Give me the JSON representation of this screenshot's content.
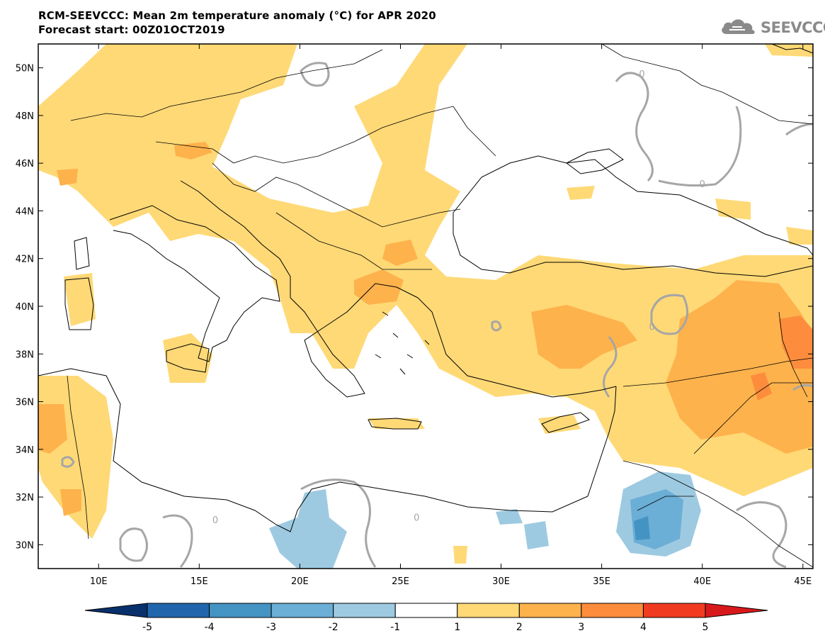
{
  "title": {
    "line1": "RCM-SEEVCCC: Mean 2m temperature anomaly (°C) for APR 2020",
    "line2": "Forecast start: 00Z01OCT2019"
  },
  "logo": {
    "text": "SEEVCCC",
    "icon": "cloud-icon"
  },
  "axes": {
    "lat_labels": [
      "50N",
      "48N",
      "46N",
      "44N",
      "42N",
      "40N",
      "38N",
      "36N",
      "34N",
      "32N",
      "30N"
    ],
    "lat_values": [
      50,
      48,
      46,
      44,
      42,
      40,
      38,
      36,
      34,
      32,
      30
    ],
    "lon_labels": [
      "10E",
      "15E",
      "20E",
      "25E",
      "30E",
      "35E",
      "40E",
      "45E"
    ],
    "lon_values": [
      10,
      15,
      20,
      25,
      30,
      35,
      40,
      45
    ],
    "lon_range": [
      7,
      45.5
    ],
    "lat_range": [
      29,
      51
    ]
  },
  "contour_labels": [
    {
      "text": "0",
      "lon": 37.0,
      "lat": 49.6
    },
    {
      "text": "0",
      "lon": 40.0,
      "lat": 45.0
    },
    {
      "text": "0",
      "lon": 37.5,
      "lat": 39.0
    },
    {
      "text": "0",
      "lon": 15.8,
      "lat": 30.9
    },
    {
      "text": "0",
      "lon": 25.8,
      "lat": 31.0
    }
  ],
  "colorbar": {
    "boundaries": [
      "-5",
      "-4",
      "-3",
      "-2",
      "-1",
      "1",
      "2",
      "3",
      "4",
      "5"
    ],
    "colors": [
      "#08306b",
      "#2166ac",
      "#4393c3",
      "#6baed6",
      "#9ecae1",
      "#ffffff",
      "#fed976",
      "#feb24c",
      "#fd8d3c",
      "#f03b20",
      "#d7191c"
    ]
  },
  "colors": {
    "positive_1_2": "#fed976",
    "positive_2_3": "#feb24c",
    "positive_3_4": "#fd8d3c",
    "negative_1_2": "#9ecae1",
    "negative_2_3": "#6baed6",
    "negative_3_4": "#4393c3",
    "zero_contour": "#a6a6a6",
    "coastline": "#000000"
  }
}
